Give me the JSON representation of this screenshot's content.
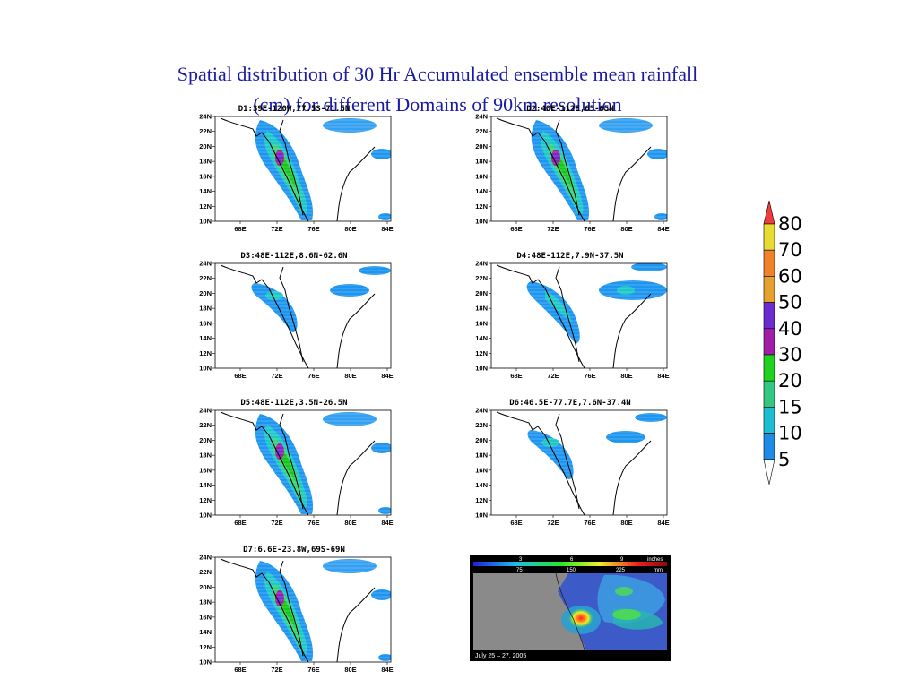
{
  "title": {
    "line1": "Spatial distribution of 30 Hr Accumulated ensemble mean rainfall",
    "line2": "(cm) for different Domains of 90km resolution"
  },
  "panels": [
    {
      "label": "D1:39E-120W,77.5S-71.5N",
      "rain": "heavy"
    },
    {
      "label": "D2:40E-112E,65-65N",
      "rain": "heavy"
    },
    {
      "label": "D3:48E-112E,8.6N-62.6N",
      "rain": "light"
    },
    {
      "label": "D4:48E-112E,7.9N-37.5N",
      "rain": "moderate"
    },
    {
      "label": "D5:48E-112E,3.5N-26.5N",
      "rain": "heavy"
    },
    {
      "label": "D6:46.5E-77.7E,7.6N-37.4N",
      "rain": "light"
    },
    {
      "label": "D7:6.6E-23.8W,69S-69N",
      "rain": "heavy"
    }
  ],
  "axes": {
    "lon_ticks": [
      "68E",
      "72E",
      "76E",
      "80E",
      "84E"
    ],
    "lat_ticks": [
      "24N",
      "22N",
      "20N",
      "18N",
      "16N",
      "14N",
      "12N",
      "10N"
    ]
  },
  "legend": {
    "labels": [
      "80",
      "70",
      "60",
      "50",
      "40",
      "30",
      "20",
      "15",
      "10",
      "5"
    ],
    "colors": [
      "#f03c3c",
      "#e6dc32",
      "#f08228",
      "#e6a02d",
      "#6a2bd0",
      "#a01ea8",
      "#1ed21e",
      "#32c882",
      "#1ebed2",
      "#1e8ce6"
    ]
  },
  "colors": {
    "lightest": "#1e96f0",
    "level2": "#1ec8c8",
    "level3": "#3cd278",
    "level4": "#14c814",
    "level5": "#a01ea8",
    "level6": "#6e28d2"
  },
  "satellite": {
    "scale_top": [
      "3",
      "6",
      "9",
      "inches"
    ],
    "scale_bottom": [
      "75",
      "150",
      "225",
      "mm"
    ],
    "caption": "July 25 – 27, 2005"
  }
}
